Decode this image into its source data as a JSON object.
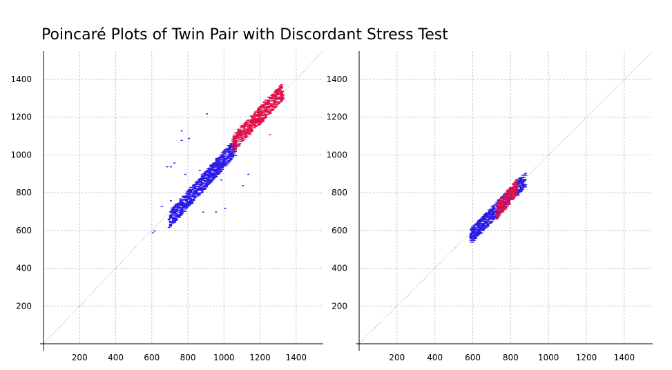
{
  "title": "Poincaré Plots of Twin Pair with Discordant Stress Test",
  "chart_data": [
    {
      "type": "scatter",
      "title": "",
      "xlabel": "",
      "ylabel": "",
      "xlim": [
        0,
        1550
      ],
      "ylim": [
        0,
        1550
      ],
      "x_ticks": [
        200,
        400,
        600,
        800,
        1000,
        1200,
        1400
      ],
      "y_ticks": [
        200,
        400,
        600,
        800,
        1000,
        1200,
        1400
      ],
      "grid": true,
      "identity_line": true,
      "colors": {
        "early": "#2a1ae6",
        "late": "#e0104a"
      },
      "series": [
        {
          "color": "#2a1ae6",
          "cluster": {
            "x_range": [
              690,
              1060
            ],
            "y_range": [
              660,
              1050
            ]
          },
          "x": [
            600,
            610,
            700,
            740,
            780,
            820,
            860,
            900,
            940,
            980,
            1020,
            1060,
            840,
            870,
            900,
            930,
            960,
            1000,
            1040,
            760,
            720,
            680,
            650,
            700,
            760,
            800,
            1050,
            1080,
            900,
            950,
            880,
            1000,
            1100,
            980,
            860,
            820,
            700,
            720,
            780,
            1130
          ],
          "y": [
            590,
            600,
            680,
            740,
            780,
            820,
            860,
            900,
            940,
            980,
            1020,
            1050,
            860,
            880,
            920,
            940,
            980,
            1010,
            1040,
            1130,
            960,
            940,
            730,
            940,
            1080,
            1090,
            1040,
            1050,
            1220,
            700,
            700,
            720,
            840,
            870,
            920,
            800,
            760,
            680,
            900,
            900
          ]
        },
        {
          "color": "#e0104a",
          "cluster": {
            "x_range": [
              1040,
              1320
            ],
            "y_range": [
              1060,
              1340
            ]
          },
          "x": [
            1060,
            1100,
            1140,
            1180,
            1220,
            1260,
            1300,
            1320,
            1200,
            1160,
            1250,
            1110,
            1290,
            1230
          ],
          "y": [
            1080,
            1110,
            1150,
            1190,
            1220,
            1260,
            1300,
            1340,
            1250,
            1180,
            1110,
            1140,
            1320,
            1240
          ]
        }
      ]
    },
    {
      "type": "scatter",
      "title": "",
      "xlabel": "",
      "ylabel": "",
      "xlim": [
        0,
        1550
      ],
      "ylim": [
        0,
        1550
      ],
      "x_ticks": [
        200,
        400,
        600,
        800,
        1000,
        1200,
        1400
      ],
      "y_ticks": [
        200,
        400,
        600,
        800,
        1000,
        1200,
        1400
      ],
      "grid": true,
      "identity_line": true,
      "colors": {
        "early": "#2a1ae6",
        "late": "#e0104a"
      },
      "series": [
        {
          "color": "#2a1ae6",
          "cluster": {
            "x_range": [
              580,
              870
            ],
            "y_range": [
              570,
              870
            ]
          },
          "x": [
            580,
            600,
            640,
            680,
            720,
            760,
            800,
            840,
            870,
            700,
            740,
            780,
            820,
            660,
            700,
            740
          ],
          "y": [
            570,
            590,
            620,
            650,
            690,
            730,
            780,
            820,
            870,
            720,
            760,
            800,
            840,
            640,
            660,
            700
          ]
        },
        {
          "color": "#e0104a",
          "cluster": {
            "x_range": [
              720,
              830
            ],
            "y_range": [
              700,
              840
            ]
          },
          "x": [
            720,
            740,
            760,
            780,
            800,
            820,
            760,
            790
          ],
          "y": [
            720,
            760,
            790,
            810,
            830,
            840,
            720,
            740
          ]
        }
      ]
    }
  ]
}
